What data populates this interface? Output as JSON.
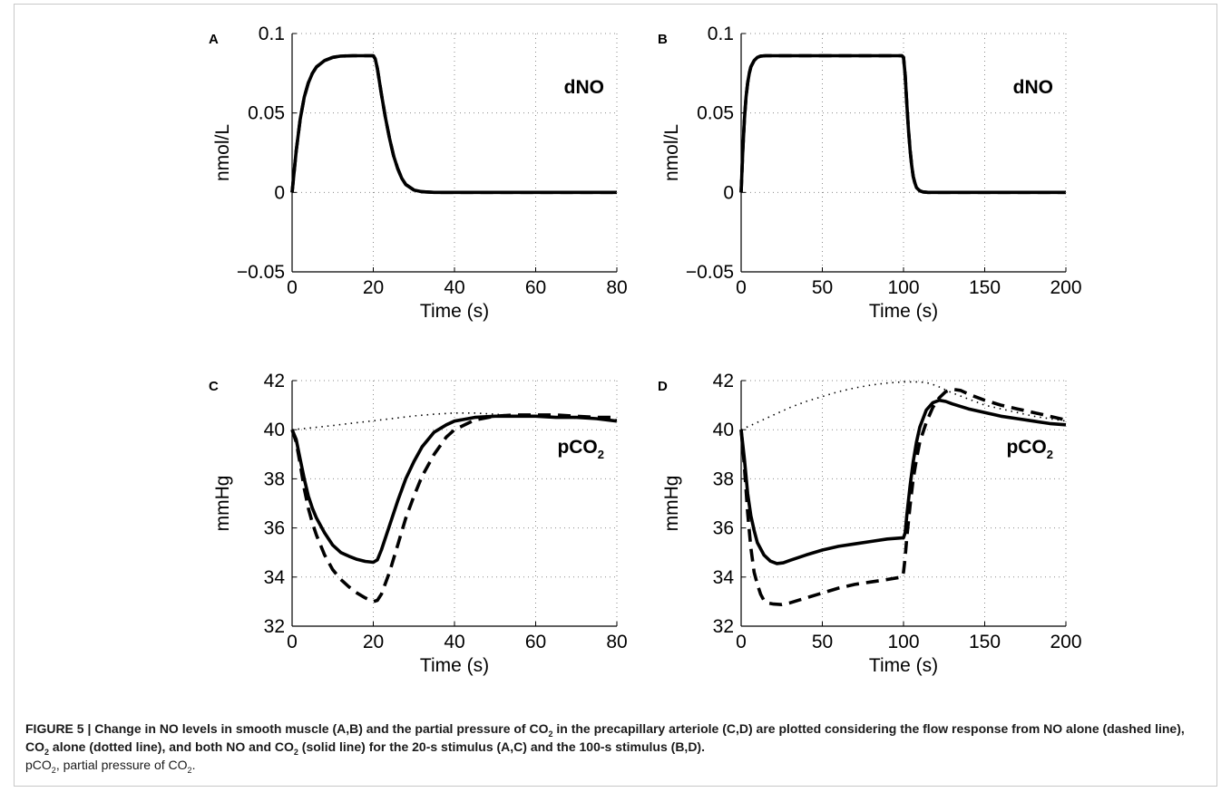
{
  "caption": {
    "figure_label": "FIGURE 5 | ",
    "bold_part1": "Change in NO levels in smooth muscle (A,B) and the partial pressure of CO",
    "bold_part1_sub": "2",
    "bold_part2": " in the precapillary arteriole (C,D) are plotted considering the flow response from NO alone (dashed line), CO",
    "bold_part2_sub": "2",
    "bold_part3": " alone (dotted line), and both NO and CO",
    "bold_part3_sub": "2",
    "bold_part4": " (solid line) for the 20-s stimulus (A,C) and the 100-s stimulus (B,D).",
    "normal_part1": "pCO",
    "normal_part1_sub": "2",
    "normal_part2": ", partial pressure of CO",
    "normal_part2_sub": "2",
    "normal_part3": "."
  },
  "chart_data": [
    {
      "panel": "A",
      "type": "line",
      "annotation": "dNO",
      "annotation_sub": "",
      "xlabel": "Time (s)",
      "ylabel": "nmol/L",
      "xlim": [
        0,
        80
      ],
      "ylim": [
        -0.05,
        0.1
      ],
      "xticks": [
        0,
        20,
        40,
        60,
        80
      ],
      "xticklabels": [
        "0",
        "20",
        "40",
        "60",
        "80"
      ],
      "yticks": [
        -0.05,
        0,
        0.05,
        0.1
      ],
      "yticklabels": [
        "−0.05",
        "0",
        "0.05",
        "0.1"
      ],
      "grid": true,
      "series": [
        {
          "style": "solid",
          "x": [
            0,
            1,
            2,
            3,
            4,
            5,
            6,
            8,
            10,
            12,
            15,
            18,
            20,
            20.5,
            21,
            22,
            23,
            24,
            25,
            26,
            27,
            28,
            30,
            32,
            35,
            40,
            50,
            60,
            70,
            80
          ],
          "y": [
            0,
            0.026,
            0.046,
            0.06,
            0.069,
            0.075,
            0.079,
            0.083,
            0.085,
            0.0858,
            0.086,
            0.086,
            0.086,
            0.084,
            0.078,
            0.062,
            0.047,
            0.034,
            0.023,
            0.015,
            0.009,
            0.005,
            0.0015,
            0.0004,
            0,
            0,
            0,
            0,
            0,
            0
          ]
        },
        {
          "style": "dashed",
          "x": [
            0,
            1,
            2,
            3,
            4,
            5,
            6,
            8,
            10,
            12,
            15,
            18,
            20,
            20.5,
            21,
            22,
            23,
            24,
            25,
            26,
            27,
            28,
            30,
            32,
            35,
            40,
            50,
            60,
            70,
            80
          ],
          "y": [
            0,
            0.026,
            0.046,
            0.06,
            0.069,
            0.075,
            0.079,
            0.083,
            0.085,
            0.0858,
            0.086,
            0.086,
            0.086,
            0.084,
            0.078,
            0.062,
            0.047,
            0.034,
            0.023,
            0.015,
            0.009,
            0.005,
            0.0015,
            0.0004,
            0,
            0,
            0,
            0,
            0,
            0
          ]
        },
        {
          "style": "dotted",
          "x": [
            0,
            1,
            2,
            3,
            4,
            5,
            6,
            8,
            10,
            12,
            15,
            18,
            20,
            20.5,
            21,
            22,
            23,
            24,
            25,
            26,
            27,
            28,
            30,
            32,
            35,
            40,
            50,
            60,
            70,
            80
          ],
          "y": [
            0,
            0.026,
            0.046,
            0.06,
            0.069,
            0.075,
            0.079,
            0.083,
            0.085,
            0.0858,
            0.086,
            0.086,
            0.086,
            0.084,
            0.078,
            0.062,
            0.047,
            0.034,
            0.023,
            0.015,
            0.009,
            0.005,
            0.0015,
            0.0004,
            0,
            0,
            0,
            0,
            0,
            0
          ]
        }
      ]
    },
    {
      "panel": "B",
      "type": "line",
      "annotation": "dNO",
      "annotation_sub": "",
      "xlabel": "Time (s)",
      "ylabel": "nmol/L",
      "xlim": [
        0,
        200
      ],
      "ylim": [
        -0.05,
        0.1
      ],
      "xticks": [
        0,
        50,
        100,
        150,
        200
      ],
      "xticklabels": [
        "0",
        "50",
        "100",
        "150",
        "200"
      ],
      "yticks": [
        -0.05,
        0,
        0.05,
        0.1
      ],
      "yticklabels": [
        "−0.05",
        "0",
        "0.05",
        "0.1"
      ],
      "grid": true,
      "series": [
        {
          "style": "solid",
          "x": [
            0,
            1,
            2,
            3,
            4,
            5,
            6,
            8,
            10,
            12,
            15,
            20,
            40,
            60,
            80,
            99,
            100,
            101,
            102,
            103,
            104,
            105,
            106,
            107,
            108,
            110,
            112,
            115,
            120,
            150,
            200
          ],
          "y": [
            0,
            0.026,
            0.046,
            0.06,
            0.069,
            0.075,
            0.079,
            0.083,
            0.085,
            0.0858,
            0.086,
            0.086,
            0.086,
            0.086,
            0.086,
            0.086,
            0.085,
            0.074,
            0.056,
            0.04,
            0.027,
            0.017,
            0.01,
            0.006,
            0.003,
            0.001,
            0.0003,
            0,
            0,
            0,
            0
          ]
        },
        {
          "style": "dashed",
          "x": [
            0,
            1,
            2,
            3,
            4,
            5,
            6,
            8,
            10,
            12,
            15,
            20,
            40,
            60,
            80,
            99,
            100,
            101,
            102,
            103,
            104,
            105,
            106,
            107,
            108,
            110,
            112,
            115,
            120,
            150,
            200
          ],
          "y": [
            0,
            0.026,
            0.046,
            0.06,
            0.069,
            0.075,
            0.079,
            0.083,
            0.085,
            0.0858,
            0.086,
            0.086,
            0.086,
            0.086,
            0.086,
            0.086,
            0.085,
            0.074,
            0.056,
            0.04,
            0.027,
            0.017,
            0.01,
            0.006,
            0.003,
            0.001,
            0.0003,
            0,
            0,
            0,
            0
          ]
        },
        {
          "style": "dotted",
          "x": [
            0,
            1,
            2,
            3,
            4,
            5,
            6,
            8,
            10,
            12,
            15,
            20,
            40,
            60,
            80,
            99,
            100,
            101,
            102,
            103,
            104,
            105,
            106,
            107,
            108,
            110,
            112,
            115,
            120,
            150,
            200
          ],
          "y": [
            0,
            0.026,
            0.046,
            0.06,
            0.069,
            0.075,
            0.079,
            0.083,
            0.085,
            0.0858,
            0.086,
            0.086,
            0.086,
            0.086,
            0.086,
            0.086,
            0.085,
            0.074,
            0.056,
            0.04,
            0.027,
            0.017,
            0.01,
            0.006,
            0.003,
            0.001,
            0.0003,
            0,
            0,
            0,
            0
          ]
        }
      ]
    },
    {
      "panel": "C",
      "type": "line",
      "annotation": "pCO",
      "annotation_sub": "2",
      "xlabel": "Time (s)",
      "ylabel": "mmHg",
      "xlim": [
        0,
        80
      ],
      "ylim": [
        32,
        42
      ],
      "xticks": [
        0,
        20,
        40,
        60,
        80
      ],
      "xticklabels": [
        "0",
        "20",
        "40",
        "60",
        "80"
      ],
      "yticks": [
        32,
        34,
        36,
        38,
        40,
        42
      ],
      "yticklabels": [
        "32",
        "34",
        "36",
        "38",
        "40",
        "42"
      ],
      "grid": true,
      "series": [
        {
          "style": "solid",
          "x": [
            0,
            1,
            2,
            3,
            4,
            5,
            6,
            8,
            10,
            12,
            14,
            16,
            18,
            20,
            21,
            22,
            24,
            26,
            28,
            30,
            32,
            35,
            38,
            40,
            45,
            50,
            55,
            60,
            65,
            70,
            75,
            80
          ],
          "y": [
            40,
            39.6,
            38.8,
            38.0,
            37.3,
            36.8,
            36.4,
            35.8,
            35.3,
            35.0,
            34.85,
            34.72,
            34.64,
            34.6,
            34.7,
            35.1,
            36.1,
            37.1,
            38.0,
            38.7,
            39.3,
            39.9,
            40.2,
            40.35,
            40.5,
            40.55,
            40.55,
            40.55,
            40.5,
            40.5,
            40.45,
            40.35
          ]
        },
        {
          "style": "dashed",
          "x": [
            0,
            1,
            2,
            3,
            4,
            5,
            6,
            8,
            10,
            12,
            14,
            16,
            18,
            20,
            21,
            22,
            24,
            26,
            28,
            30,
            32,
            35,
            38,
            40,
            45,
            50,
            55,
            60,
            65,
            70,
            75,
            80
          ],
          "y": [
            40,
            39.5,
            38.6,
            37.6,
            36.8,
            36.2,
            35.7,
            34.9,
            34.3,
            33.9,
            33.6,
            33.35,
            33.15,
            33.0,
            33.05,
            33.3,
            34.2,
            35.3,
            36.4,
            37.3,
            38.1,
            39.0,
            39.7,
            40.0,
            40.4,
            40.55,
            40.6,
            40.6,
            40.6,
            40.55,
            40.5,
            40.5
          ]
        },
        {
          "style": "dotted",
          "x": [
            0,
            5,
            10,
            15,
            20,
            25,
            30,
            35,
            40,
            45,
            50,
            55,
            60,
            65,
            70,
            75,
            80
          ],
          "y": [
            40,
            40.08,
            40.17,
            40.27,
            40.36,
            40.46,
            40.56,
            40.63,
            40.68,
            40.68,
            40.63,
            40.58,
            40.54,
            40.5,
            40.47,
            40.44,
            40.41
          ]
        }
      ]
    },
    {
      "panel": "D",
      "type": "line",
      "annotation": "pCO",
      "annotation_sub": "2",
      "xlabel": "Time (s)",
      "ylabel": "mmHg",
      "xlim": [
        0,
        200
      ],
      "ylim": [
        32,
        42
      ],
      "xticks": [
        0,
        50,
        100,
        150,
        200
      ],
      "xticklabels": [
        "0",
        "50",
        "100",
        "150",
        "200"
      ],
      "yticks": [
        32,
        34,
        36,
        38,
        40,
        42
      ],
      "yticklabels": [
        "32",
        "34",
        "36",
        "38",
        "40",
        "42"
      ],
      "grid": true,
      "series": [
        {
          "style": "solid",
          "x": [
            0,
            2,
            4,
            6,
            8,
            10,
            14,
            18,
            22,
            26,
            30,
            40,
            50,
            60,
            70,
            80,
            90,
            100,
            101,
            102,
            104,
            106,
            108,
            110,
            114,
            118,
            122,
            126,
            130,
            140,
            150,
            160,
            170,
            180,
            190,
            200
          ],
          "y": [
            40,
            38.8,
            37.4,
            36.5,
            35.9,
            35.4,
            34.9,
            34.65,
            34.55,
            34.58,
            34.68,
            34.9,
            35.1,
            35.25,
            35.35,
            35.45,
            35.55,
            35.6,
            35.8,
            36.5,
            37.7,
            38.7,
            39.5,
            40.1,
            40.8,
            41.1,
            41.2,
            41.15,
            41.05,
            40.85,
            40.7,
            40.55,
            40.45,
            40.35,
            40.25,
            40.2
          ]
        },
        {
          "style": "dashed",
          "x": [
            0,
            2,
            4,
            6,
            8,
            10,
            12,
            14,
            16,
            20,
            25,
            30,
            40,
            50,
            60,
            70,
            80,
            90,
            99,
            100,
            101,
            102,
            104,
            106,
            108,
            110,
            114,
            118,
            122,
            126,
            130,
            135,
            140,
            150,
            160,
            170,
            180,
            190,
            200
          ],
          "y": [
            40,
            38.5,
            36.6,
            35.2,
            34.2,
            33.7,
            33.3,
            33.05,
            32.95,
            32.9,
            32.88,
            32.95,
            33.15,
            33.35,
            33.55,
            33.7,
            33.8,
            33.9,
            34.0,
            34.2,
            34.8,
            35.6,
            36.9,
            38.0,
            38.8,
            39.5,
            40.3,
            40.9,
            41.3,
            41.55,
            41.65,
            41.6,
            41.45,
            41.2,
            41.0,
            40.85,
            40.7,
            40.55,
            40.4
          ]
        },
        {
          "style": "dotted",
          "x": [
            0,
            10,
            20,
            30,
            40,
            50,
            60,
            70,
            80,
            90,
            100,
            110,
            115,
            120,
            125,
            130,
            140,
            150,
            160,
            170,
            180,
            190,
            200
          ],
          "y": [
            40,
            40.3,
            40.6,
            40.9,
            41.15,
            41.35,
            41.55,
            41.7,
            41.82,
            41.9,
            41.95,
            41.95,
            41.9,
            41.8,
            41.65,
            41.5,
            41.25,
            41.0,
            40.85,
            40.7,
            40.55,
            40.45,
            40.35
          ]
        }
      ]
    }
  ]
}
